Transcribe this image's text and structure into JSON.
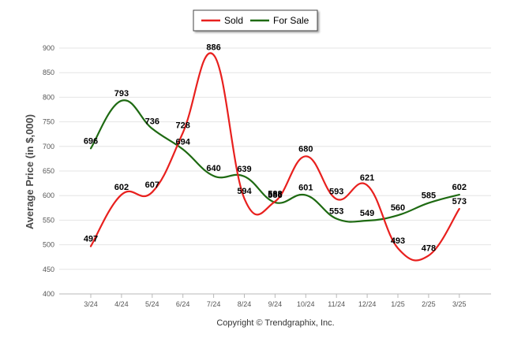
{
  "chart_data": {
    "type": "line",
    "categories": [
      "3/24",
      "4/24",
      "5/24",
      "6/24",
      "7/24",
      "8/24",
      "9/24",
      "10/24",
      "11/24",
      "12/24",
      "1/25",
      "2/25",
      "3/25"
    ],
    "series": [
      {
        "name": "Sold",
        "color": "#e8201e",
        "values": [
          497,
          602,
          607,
          728,
          886,
          594,
          588,
          680,
          593,
          621,
          493,
          478,
          573
        ]
      },
      {
        "name": "For Sale",
        "color": "#1e6a12",
        "values": [
          696,
          793,
          736,
          694,
          640,
          639,
          586,
          601,
          553,
          549,
          560,
          585,
          602
        ]
      }
    ],
    "ylabel": "Average Price (in $,000)",
    "ylim": [
      400,
      900
    ],
    "yticks": [
      400,
      450,
      500,
      550,
      600,
      650,
      700,
      750,
      800,
      850,
      900
    ],
    "grid": true,
    "legend_position": "top-center"
  },
  "footer": "Copyright © Trendgraphix, Inc."
}
